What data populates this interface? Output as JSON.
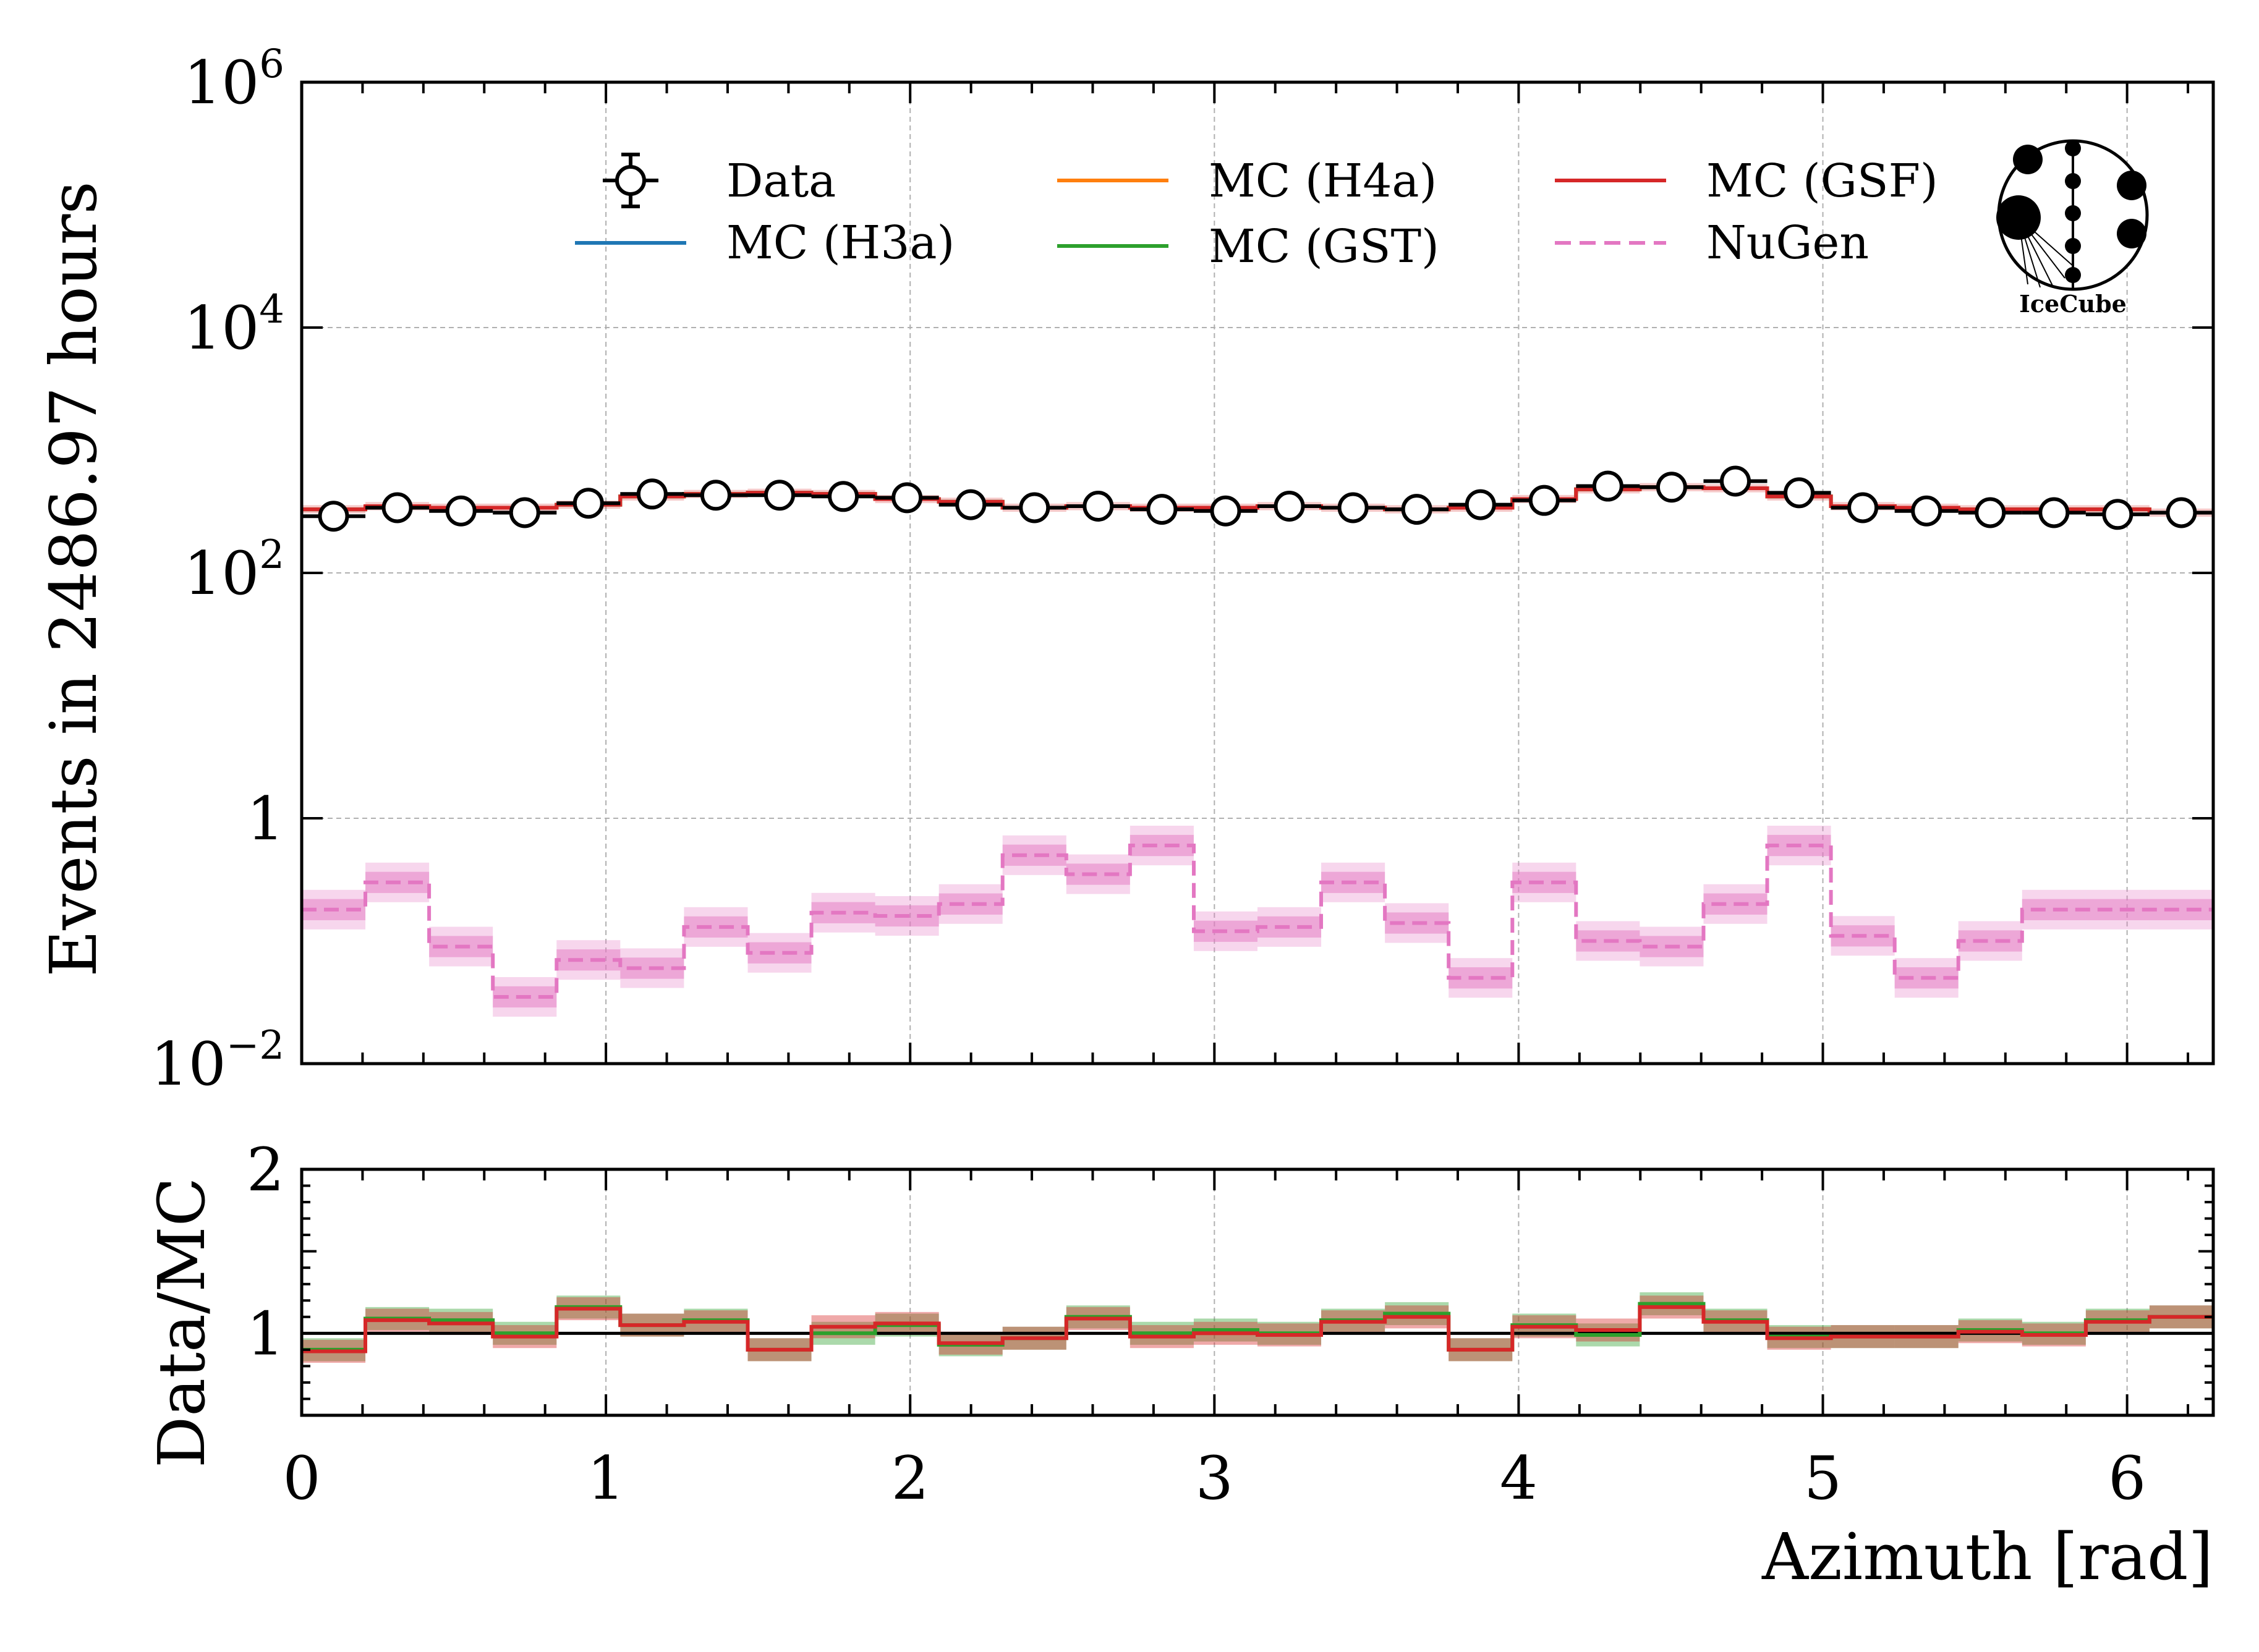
{
  "chart_data": [
    {
      "type": "line",
      "panel": "main",
      "yscale": "log",
      "ylabel": "Events in 2486.97 hours",
      "xlabel": "",
      "xlim": [
        0,
        6.2832
      ],
      "ylim": [
        0.01,
        1000000
      ],
      "yticks": [
        0.01,
        1,
        100,
        10000,
        1000000
      ],
      "ytick_labels": [
        {
          "base": "10",
          "exp": "−2"
        },
        {
          "base": "1",
          "exp": ""
        },
        {
          "base": "10",
          "exp": "2"
        },
        {
          "base": "10",
          "exp": "4"
        },
        {
          "base": "10",
          "exp": "6"
        }
      ],
      "grid": true,
      "legend_position": "top",
      "bin_edges": [
        0,
        0.2094,
        0.4189,
        0.6283,
        0.8378,
        1.0472,
        1.2566,
        1.4661,
        1.6755,
        1.885,
        2.0944,
        2.3038,
        2.5133,
        2.7227,
        2.9322,
        3.1416,
        3.351,
        3.5605,
        3.7699,
        3.9794,
        4.1888,
        4.3982,
        4.6077,
        4.8171,
        5.0265,
        5.236,
        5.4454,
        5.6549,
        5.8643,
        6.0737,
        6.2832
      ],
      "series": [
        {
          "name": "Data",
          "style": "points",
          "color": "#000000",
          "values": [
            290,
            340,
            320,
            310,
            370,
            440,
            430,
            430,
            420,
            410,
            360,
            340,
            350,
            330,
            320,
            350,
            340,
            330,
            360,
            390,
            510,
            500,
            560,
            450,
            340,
            320,
            310,
            310,
            300,
            310
          ]
        },
        {
          "name": "MC (H3a)",
          "style": "step",
          "color": "#1f77b4",
          "values": [
            330,
            350,
            340,
            340,
            360,
            420,
            440,
            450,
            440,
            400,
            380,
            340,
            350,
            340,
            340,
            350,
            340,
            330,
            340,
            400,
            480,
            500,
            490,
            420,
            350,
            340,
            330,
            330,
            330,
            310
          ]
        },
        {
          "name": "MC (H4a)",
          "style": "step",
          "color": "#ff7f0e",
          "values": [
            330,
            350,
            340,
            340,
            360,
            420,
            440,
            450,
            440,
            400,
            380,
            340,
            350,
            340,
            340,
            350,
            340,
            330,
            340,
            400,
            480,
            500,
            490,
            420,
            350,
            340,
            330,
            330,
            330,
            310
          ]
        },
        {
          "name": "MC (GST)",
          "style": "step",
          "color": "#2ca02c",
          "values": [
            330,
            350,
            340,
            340,
            360,
            420,
            440,
            450,
            440,
            400,
            380,
            340,
            350,
            340,
            340,
            350,
            340,
            330,
            340,
            400,
            480,
            500,
            490,
            420,
            350,
            340,
            330,
            330,
            330,
            310
          ]
        },
        {
          "name": "MC (GSF)",
          "style": "step",
          "color": "#d62728",
          "values": [
            330,
            350,
            340,
            340,
            360,
            420,
            440,
            450,
            440,
            400,
            380,
            340,
            350,
            340,
            340,
            350,
            340,
            330,
            340,
            400,
            480,
            500,
            490,
            420,
            350,
            340,
            330,
            330,
            330,
            310
          ]
        },
        {
          "name": "NuGen",
          "style": "dashed-step",
          "color": "#e377c2",
          "values": [
            0.18,
            0.3,
            0.09,
            0.035,
            0.07,
            0.06,
            0.13,
            0.08,
            0.17,
            0.16,
            0.2,
            0.5,
            0.35,
            0.6,
            0.12,
            0.13,
            0.3,
            0.14,
            0.05,
            0.3,
            0.1,
            0.09,
            0.2,
            0.6,
            0.11,
            0.05,
            0.1,
            0.18,
            0.18,
            0.18
          ]
        }
      ],
      "logo_text": "IceCube"
    },
    {
      "type": "line",
      "panel": "ratio",
      "ylabel": "Data/MC",
      "xlabel": "Azimuth [rad]",
      "xlim": [
        0,
        6.2832
      ],
      "ylim": [
        0.5,
        2
      ],
      "yticks": [
        1,
        2
      ],
      "xticks": [
        0,
        1,
        2,
        3,
        4,
        5,
        6
      ],
      "reference_line": 1,
      "grid": true,
      "bin_edges": [
        0,
        0.2094,
        0.4189,
        0.6283,
        0.8378,
        1.0472,
        1.2566,
        1.4661,
        1.6755,
        1.885,
        2.0944,
        2.3038,
        2.5133,
        2.7227,
        2.9322,
        3.1416,
        3.351,
        3.5605,
        3.7699,
        3.9794,
        4.1888,
        4.3982,
        4.6077,
        4.8171,
        5.0265,
        5.236,
        5.4454,
        5.6549,
        5.8643,
        6.0737,
        6.2832
      ],
      "series": [
        {
          "name": "MC (GST)",
          "color": "#2ca02c",
          "values": [
            0.9,
            1.09,
            1.08,
            1.0,
            1.16,
            1.05,
            1.08,
            0.9,
            1.0,
            1.05,
            0.93,
            0.97,
            1.1,
            1.0,
            1.02,
            1.0,
            1.08,
            1.12,
            0.9,
            1.05,
            0.99,
            1.18,
            1.08,
            0.98,
            0.98,
            0.98,
            1.02,
            1.0,
            1.08,
            1.1
          ]
        },
        {
          "name": "MC (GSF)",
          "color": "#d62728",
          "values": [
            0.89,
            1.08,
            1.06,
            0.98,
            1.15,
            1.05,
            1.07,
            0.9,
            1.04,
            1.06,
            0.94,
            0.97,
            1.09,
            0.98,
            1.0,
            0.99,
            1.07,
            1.1,
            0.9,
            1.04,
            1.02,
            1.16,
            1.07,
            0.97,
            0.98,
            0.98,
            1.01,
            0.99,
            1.07,
            1.1
          ]
        }
      ]
    }
  ]
}
